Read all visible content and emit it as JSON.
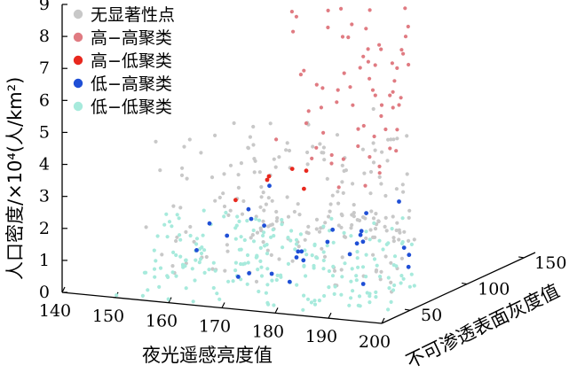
{
  "chart_data": {
    "type": "scatter",
    "projection": "3d",
    "axes": {
      "x": {
        "label": "夜光遥感亮度值",
        "range": [
          140,
          200
        ],
        "ticks": [
          "140",
          "150",
          "160",
          "170",
          "180",
          "190",
          "200"
        ]
      },
      "y": {
        "label": "不可渗透表面灰度值",
        "range": [
          25,
          160
        ],
        "ticks": [
          "50",
          "100",
          "150"
        ]
      },
      "z": {
        "label": "人口密度/×10⁴(人/km²)",
        "range": [
          0,
          9
        ],
        "ticks": [
          "0",
          "1",
          "2",
          "3",
          "4",
          "5",
          "6",
          "7",
          "8",
          "9"
        ]
      }
    },
    "legend_placement": "top-left",
    "series": [
      {
        "name": "无显著性点",
        "color": "#c8c8c8",
        "count": 260,
        "x_range": [
          152,
          198
        ],
        "y_range": [
          40,
          140
        ],
        "z_range": [
          0.4,
          4.6
        ]
      },
      {
        "name": "高−高聚类",
        "color": "#e07b82",
        "count": 150,
        "x_range": [
          168,
          200
        ],
        "y_range": [
          80,
          160
        ],
        "z_range": [
          2.8,
          8.8
        ]
      },
      {
        "name": "高−低聚类",
        "color": "#e8281e",
        "count": 6,
        "x_range": [
          163,
          175
        ],
        "y_range": [
          60,
          100
        ],
        "z_range": [
          2.5,
          3.5
        ]
      },
      {
        "name": "低−高聚类",
        "color": "#1f4fd6",
        "count": 28,
        "x_range": [
          160,
          195
        ],
        "y_range": [
          40,
          110
        ],
        "z_range": [
          0.3,
          2.5
        ]
      },
      {
        "name": "低−低聚类",
        "color": "#a7eadc",
        "count": 230,
        "x_range": [
          150,
          200
        ],
        "y_range": [
          25,
          90
        ],
        "z_range": [
          0.0,
          2.2
        ]
      }
    ]
  }
}
